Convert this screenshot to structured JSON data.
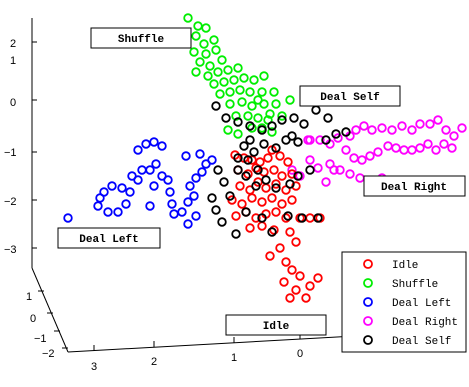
{
  "chart_data": {
    "type": "scatter",
    "title": "",
    "axes": {
      "x_ticks": [
        "3",
        "2",
        "1",
        "0",
        "−1",
        "−2"
      ],
      "y_ticks": [
        "1",
        "0",
        "−1",
        "−2"
      ],
      "z_ticks": [
        "2",
        "1",
        "0",
        "−1",
        "−2",
        "−3"
      ]
    },
    "marker": "open-circle",
    "legend": {
      "position": "bottom-right",
      "entries": [
        "Idle",
        "Shuffle",
        "Deal Left",
        "Deal Right",
        "Deal Self"
      ]
    },
    "annotations": [
      "Shuffle",
      "Deal Self",
      "Deal Right",
      "Deal Left",
      "Idle"
    ],
    "series": [
      {
        "name": "Idle",
        "color": "#ff0000",
        "points": [
          [
            235,
            155
          ],
          [
            244,
            158
          ],
          [
            252,
            160
          ],
          [
            260,
            162
          ],
          [
            268,
            158
          ],
          [
            272,
            150
          ],
          [
            280,
            156
          ],
          [
            288,
            162
          ],
          [
            238,
            170
          ],
          [
            248,
            174
          ],
          [
            256,
            168
          ],
          [
            264,
            172
          ],
          [
            274,
            170
          ],
          [
            282,
            176
          ],
          [
            292,
            174
          ],
          [
            240,
            186
          ],
          [
            250,
            190
          ],
          [
            258,
            182
          ],
          [
            266,
            188
          ],
          [
            276,
            184
          ],
          [
            286,
            190
          ],
          [
            296,
            186
          ],
          [
            232,
            200
          ],
          [
            242,
            204
          ],
          [
            252,
            198
          ],
          [
            262,
            202
          ],
          [
            272,
            198
          ],
          [
            282,
            204
          ],
          [
            292,
            200
          ],
          [
            236,
            216
          ],
          [
            246,
            212
          ],
          [
            256,
            218
          ],
          [
            266,
            214
          ],
          [
            276,
            212
          ],
          [
            286,
            218
          ],
          [
            300,
            218
          ],
          [
            310,
            218
          ],
          [
            320,
            218
          ],
          [
            250,
            228
          ],
          [
            262,
            226
          ],
          [
            274,
            230
          ],
          [
            290,
            232
          ],
          [
            296,
            242
          ],
          [
            280,
            248
          ],
          [
            270,
            256
          ],
          [
            286,
            262
          ],
          [
            292,
            270
          ],
          [
            300,
            276
          ],
          [
            284,
            282
          ],
          [
            296,
            290
          ],
          [
            310,
            286
          ],
          [
            318,
            278
          ],
          [
            306,
            298
          ],
          [
            290,
            298
          ]
        ]
      },
      {
        "name": "Shuffle",
        "color": "#00ee00",
        "points": [
          [
            188,
            18
          ],
          [
            198,
            26
          ],
          [
            206,
            28
          ],
          [
            196,
            36
          ],
          [
            204,
            44
          ],
          [
            214,
            40
          ],
          [
            194,
            52
          ],
          [
            206,
            54
          ],
          [
            216,
            50
          ],
          [
            200,
            62
          ],
          [
            210,
            66
          ],
          [
            222,
            60
          ],
          [
            196,
            72
          ],
          [
            208,
            76
          ],
          [
            218,
            72
          ],
          [
            228,
            70
          ],
          [
            238,
            68
          ],
          [
            214,
            84
          ],
          [
            224,
            82
          ],
          [
            234,
            80
          ],
          [
            244,
            78
          ],
          [
            254,
            80
          ],
          [
            264,
            76
          ],
          [
            220,
            94
          ],
          [
            230,
            92
          ],
          [
            240,
            90
          ],
          [
            250,
            92
          ],
          [
            262,
            92
          ],
          [
            274,
            92
          ],
          [
            230,
            104
          ],
          [
            242,
            102
          ],
          [
            252,
            106
          ],
          [
            264,
            104
          ],
          [
            276,
            104
          ],
          [
            290,
            100
          ],
          [
            236,
            116
          ],
          [
            248,
            116
          ],
          [
            258,
            118
          ],
          [
            270,
            114
          ],
          [
            282,
            116
          ],
          [
            252,
            128
          ],
          [
            262,
            128
          ],
          [
            272,
            132
          ],
          [
            228,
            130
          ],
          [
            238,
            134
          ],
          [
            258,
            100
          ],
          [
            268,
            120
          ]
        ]
      },
      {
        "name": "Deal Left",
        "color": "#0000ff",
        "points": [
          [
            68,
            218
          ],
          [
            98,
            206
          ],
          [
            108,
            212
          ],
          [
            118,
            212
          ],
          [
            104,
            192
          ],
          [
            112,
            186
          ],
          [
            122,
            188
          ],
          [
            130,
            192
          ],
          [
            132,
            176
          ],
          [
            138,
            180
          ],
          [
            142,
            170
          ],
          [
            150,
            170
          ],
          [
            156,
            164
          ],
          [
            162,
            176
          ],
          [
            154,
            186
          ],
          [
            150,
            206
          ],
          [
            168,
            180
          ],
          [
            170,
            192
          ],
          [
            172,
            204
          ],
          [
            174,
            214
          ],
          [
            182,
            212
          ],
          [
            188,
            202
          ],
          [
            194,
            196
          ],
          [
            190,
            186
          ],
          [
            196,
            178
          ],
          [
            202,
            172
          ],
          [
            206,
            164
          ],
          [
            212,
            160
          ],
          [
            200,
            154
          ],
          [
            186,
            156
          ],
          [
            188,
            224
          ],
          [
            196,
            216
          ],
          [
            138,
            150
          ],
          [
            146,
            144
          ],
          [
            154,
            142
          ],
          [
            162,
            146
          ],
          [
            126,
            204
          ],
          [
            100,
            198
          ]
        ]
      },
      {
        "name": "Deal Right",
        "color": "#ff00ff",
        "points": [
          [
            310,
            140
          ],
          [
            320,
            140
          ],
          [
            330,
            144
          ],
          [
            338,
            138
          ],
          [
            350,
            136
          ],
          [
            356,
            130
          ],
          [
            364,
            126
          ],
          [
            372,
            130
          ],
          [
            382,
            128
          ],
          [
            392,
            130
          ],
          [
            402,
            126
          ],
          [
            412,
            130
          ],
          [
            420,
            124
          ],
          [
            430,
            124
          ],
          [
            438,
            120
          ],
          [
            446,
            130
          ],
          [
            454,
            136
          ],
          [
            462,
            128
          ],
          [
            346,
            150
          ],
          [
            354,
            158
          ],
          [
            362,
            160
          ],
          [
            370,
            156
          ],
          [
            378,
            152
          ],
          [
            388,
            146
          ],
          [
            396,
            148
          ],
          [
            404,
            150
          ],
          [
            412,
            150
          ],
          [
            420,
            148
          ],
          [
            428,
            144
          ],
          [
            436,
            150
          ],
          [
            444,
            144
          ],
          [
            452,
            148
          ],
          [
            330,
            164
          ],
          [
            340,
            170
          ],
          [
            350,
            174
          ],
          [
            360,
            178
          ],
          [
            372,
            182
          ],
          [
            382,
            178
          ],
          [
            292,
            170
          ],
          [
            300,
            176
          ],
          [
            310,
            160
          ],
          [
            318,
            168
          ],
          [
            326,
            182
          ],
          [
            334,
            170
          ],
          [
            308,
            140
          ]
        ]
      },
      {
        "name": "Deal Self",
        "color": "#000000",
        "points": [
          [
            216,
            106
          ],
          [
            226,
            118
          ],
          [
            238,
            122
          ],
          [
            250,
            126
          ],
          [
            262,
            130
          ],
          [
            272,
            126
          ],
          [
            282,
            120
          ],
          [
            294,
            118
          ],
          [
            304,
            124
          ],
          [
            316,
            110
          ],
          [
            328,
            118
          ],
          [
            336,
            134
          ],
          [
            346,
            132
          ],
          [
            244,
            146
          ],
          [
            254,
            152
          ],
          [
            264,
            144
          ],
          [
            276,
            148
          ],
          [
            286,
            140
          ],
          [
            298,
            142
          ],
          [
            238,
            158
          ],
          [
            248,
            160
          ],
          [
            258,
            170
          ],
          [
            246,
            176
          ],
          [
            256,
            186
          ],
          [
            266,
            180
          ],
          [
            276,
            188
          ],
          [
            290,
            184
          ],
          [
            298,
            176
          ],
          [
            310,
            170
          ],
          [
            218,
            170
          ],
          [
            224,
            182
          ],
          [
            230,
            196
          ],
          [
            212,
            198
          ],
          [
            216,
            210
          ],
          [
            222,
            222
          ],
          [
            236,
            234
          ],
          [
            246,
            212
          ],
          [
            262,
            218
          ],
          [
            272,
            232
          ],
          [
            288,
            216
          ],
          [
            302,
            218
          ],
          [
            318,
            218
          ],
          [
            326,
            140
          ],
          [
            238,
            170
          ],
          [
            250,
            140
          ],
          [
            292,
            136
          ]
        ]
      }
    ]
  }
}
